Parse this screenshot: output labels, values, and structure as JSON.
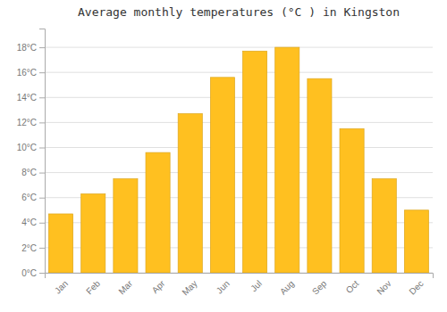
{
  "chart_data": {
    "type": "bar",
    "title": "Average monthly temperatures (°C ) in Kingston",
    "categories": [
      "Jan",
      "Feb",
      "Mar",
      "Apr",
      "May",
      "Jun",
      "Jul",
      "Aug",
      "Sep",
      "Oct",
      "Nov",
      "Dec"
    ],
    "values": [
      4.7,
      6.3,
      7.5,
      9.6,
      12.7,
      15.6,
      17.7,
      18.0,
      15.5,
      11.5,
      7.5,
      5.0
    ],
    "color": "#FFC020",
    "ylim": [
      0,
      19.5
    ],
    "yticks": [
      {
        "value": 0,
        "label": "0°C"
      },
      {
        "value": 2,
        "label": "2°C"
      },
      {
        "value": 4,
        "label": "4°C"
      },
      {
        "value": 6,
        "label": "6°C"
      },
      {
        "value": 8,
        "label": "8°C"
      },
      {
        "value": 10,
        "label": "10°C"
      },
      {
        "value": 12,
        "label": "12°C"
      },
      {
        "value": 14,
        "label": "14°C"
      },
      {
        "value": 16,
        "label": "16°C"
      },
      {
        "value": 18,
        "label": "18°C"
      }
    ],
    "grid": true
  }
}
